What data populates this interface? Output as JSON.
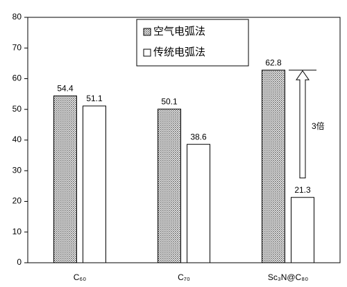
{
  "chart_data": {
    "type": "bar",
    "categories": [
      "C₆₀",
      "C₇₀",
      "Sc₃N@C₈₀"
    ],
    "series": [
      {
        "name": "空气电弧法",
        "color": "#555555",
        "pattern": "dots",
        "values": [
          54.4,
          50.1,
          62.8
        ]
      },
      {
        "name": "传统电弧法",
        "color": "#ffffff",
        "pattern": "none",
        "values": [
          51.1,
          38.6,
          21.3
        ]
      }
    ],
    "ylim": [
      0,
      80
    ],
    "yticks": [
      0,
      10,
      20,
      30,
      40,
      50,
      60,
      70,
      80
    ],
    "legend": "upper center",
    "annotation": "3倍"
  }
}
